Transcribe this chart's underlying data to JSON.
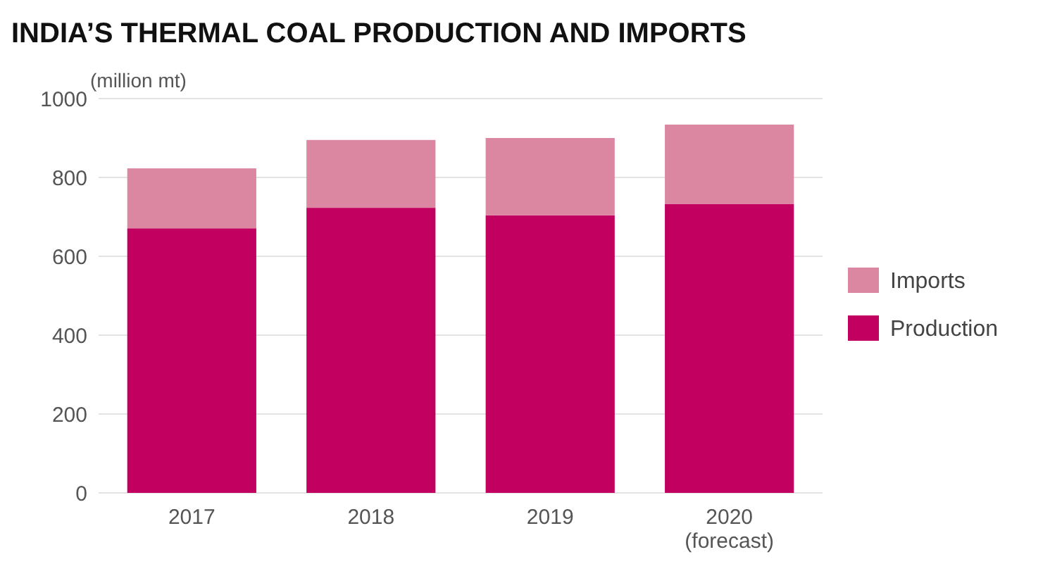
{
  "chart_data": {
    "type": "bar",
    "title": "INDIA’S THERMAL COAL PRODUCTION AND IMPORTS",
    "ylabel": "(million mt)",
    "categories": [
      "2017",
      "2018",
      "2019",
      "2020 (forecast)"
    ],
    "series": [
      {
        "name": "Production",
        "color": "#c2005f",
        "values": [
          671,
          723,
          704,
          733
        ]
      },
      {
        "name": "Imports",
        "color": "#dc87a2",
        "values": [
          152,
          172,
          196,
          201
        ]
      }
    ],
    "stacked": true,
    "ylim": [
      0,
      1000
    ],
    "yticks": [
      0,
      200,
      400,
      600,
      800,
      1000
    ],
    "grid": "y",
    "legend": "right"
  }
}
